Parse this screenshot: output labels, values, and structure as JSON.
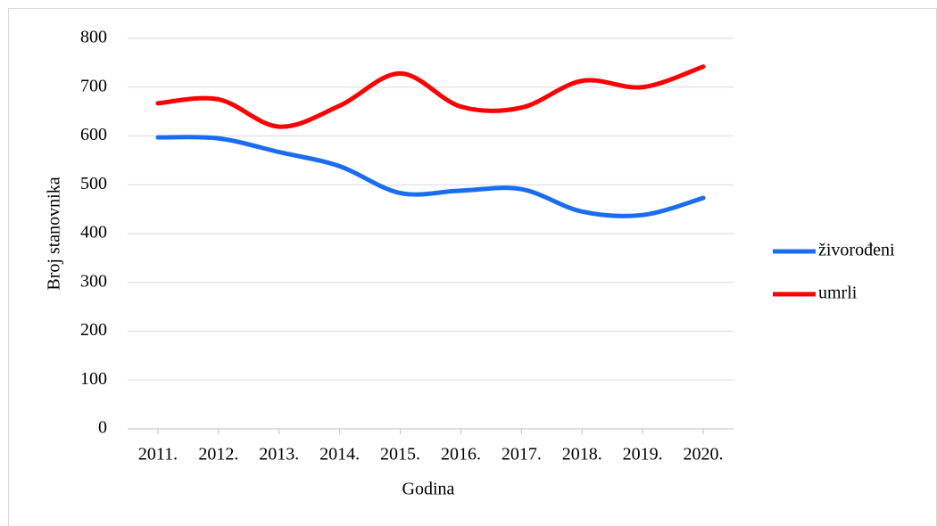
{
  "chart_data": {
    "type": "line",
    "x_label": "Godina",
    "y_label": "Broj stanovnika",
    "categories": [
      "2011.",
      "2012.",
      "2013.",
      "2014.",
      "2015.",
      "2016.",
      "2017.",
      "2018.",
      "2019.",
      "2020."
    ],
    "series": [
      {
        "name": "živorođeni",
        "color": "#1a6cf0",
        "values": [
          597,
          595,
          567,
          538,
          483,
          488,
          491,
          445,
          438,
          473
        ]
      },
      {
        "name": "umrli",
        "color": "#ff0000",
        "values": [
          667,
          675,
          619,
          662,
          728,
          660,
          658,
          713,
          700,
          742
        ]
      }
    ],
    "ylim": [
      0,
      800
    ],
    "yticks": [
      0,
      100,
      200,
      300,
      400,
      500,
      600,
      700,
      800
    ],
    "grid": true,
    "legend": "right",
    "smooth": true
  }
}
